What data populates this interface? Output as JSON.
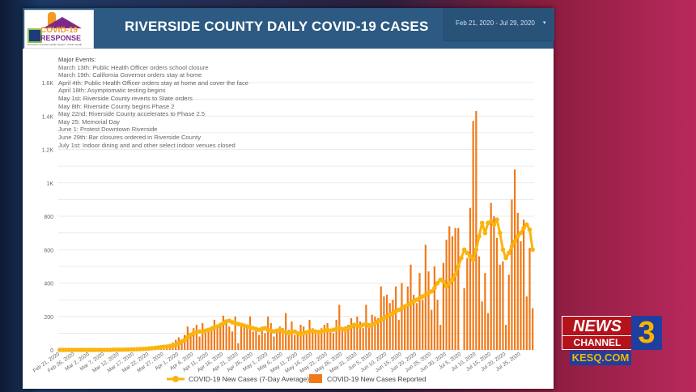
{
  "header": {
    "logo_line1": "COVID-19",
    "logo_line2": "RESPONSE",
    "logo_caption": "Riverside University Health System - Public Health",
    "title": "RIVERSIDE COUNTY DAILY COVID-19 CASES",
    "date_range": "Feb 21, 2020 - Jul 29, 2020",
    "date_caret": "▾"
  },
  "events": {
    "heading": "Major Events:",
    "items": [
      "March 13th: Public Health Officer orders school closure",
      "March 19th: California Governor orders stay at home",
      "April 4th: Public Health Officer orders stay at home and cover the face",
      "April 18th: Asymptomatic testing begins",
      "May 1st: Riverside County reverts to State orders",
      "May 8th: Riverside County begins Phase 2",
      "May 22nd: Riverside County accelerates to Phase 2.5",
      "May 25: Memorial Day",
      "June 1: Protest Downtown Riverside",
      "June 29th: Bar closures ordered in Riverside County",
      "July 1st: Indoor dining and and other select indoor venues closed"
    ]
  },
  "broadcaster": {
    "news": "NEWS",
    "channel": "CHANNEL",
    "number": "3",
    "site": "KESQ.COM"
  },
  "chart_data": {
    "type": "bar",
    "title": "RIVERSIDE COUNTY DAILY COVID-19 CASES",
    "xlabel": "",
    "ylabel": "",
    "ylim": [
      0,
      1700
    ],
    "yticks": [
      0,
      200,
      400,
      600,
      800,
      1000,
      1200,
      1400,
      1600
    ],
    "ytick_labels": [
      "0",
      "200",
      "400",
      "600",
      "800",
      "1K",
      "1.2K",
      "1.4K",
      "1.6K"
    ],
    "grid": true,
    "legend_position": "bottom",
    "colors": {
      "bars": "#f07a1a",
      "line": "#fbb40f"
    },
    "start_date": "Feb 21, 2020",
    "end_date": "Jul 29, 2020",
    "xtick_labels": [
      "Feb 21, 2020",
      "Feb 26, 2020",
      "Mar 2, 2020",
      "Mar 7, 2020",
      "Mar 12, 2020",
      "Mar 17, 2020",
      "Mar 22, 2020",
      "Mar 27, 2020",
      "Apr 1, 2020",
      "Apr 6, 2020",
      "Apr 11, 2020",
      "Apr 16, 2020",
      "Apr 21, 2020",
      "Apr 26, 2020",
      "May 1, 2020",
      "May 6, 2020",
      "May 11, 2020",
      "May 16, 2020",
      "May 21, 2020",
      "May 26, 2020",
      "May 31, 2020",
      "Jun 5, 2020",
      "Jun 10, 2020",
      "Jun 15, 2020",
      "Jun 20, 2020",
      "Jun 25, 2020",
      "Jun 30, 2020",
      "Jul 5, 2020",
      "Jul 10, 2020",
      "Jul 15, 2020",
      "Jul 20, 2020",
      "Jul 25, 2020"
    ],
    "series": [
      {
        "name": "COVID-19 New Cases (7-Day Average)",
        "type": "line",
        "values": [
          0,
          0,
          0,
          0,
          0,
          0,
          0,
          0,
          0,
          0,
          0,
          0,
          0,
          0,
          0,
          0,
          0,
          0,
          1,
          1,
          1,
          1,
          2,
          2,
          3,
          3,
          4,
          5,
          6,
          7,
          8,
          10,
          12,
          14,
          16,
          18,
          20,
          22,
          25,
          30,
          40,
          50,
          60,
          75,
          90,
          100,
          105,
          110,
          108,
          115,
          120,
          125,
          135,
          140,
          150,
          160,
          170,
          175,
          165,
          160,
          155,
          150,
          145,
          140,
          135,
          130,
          125,
          120,
          125,
          130,
          120,
          115,
          110,
          115,
          120,
          110,
          105,
          100,
          105,
          110,
          100,
          95,
          100,
          105,
          110,
          115,
          110,
          105,
          110,
          115,
          120,
          115,
          120,
          125,
          130,
          125,
          120,
          130,
          140,
          150,
          145,
          140,
          150,
          155,
          145,
          150,
          160,
          170,
          180,
          190,
          200,
          210,
          220,
          230,
          240,
          250,
          260,
          270,
          280,
          290,
          300,
          310,
          320,
          330,
          340,
          350,
          370,
          400,
          420,
          410,
          380,
          400,
          420,
          450,
          500,
          550,
          600,
          580,
          560,
          540,
          600,
          680,
          760,
          700,
          760,
          770,
          750,
          780,
          700,
          600,
          550,
          580,
          620,
          650,
          680,
          700,
          730,
          750,
          720,
          600
        ]
      },
      {
        "name": "COVID-19 New Cases Reported",
        "type": "bar",
        "values": [
          1,
          0,
          2,
          0,
          1,
          0,
          0,
          1,
          0,
          2,
          0,
          1,
          0,
          1,
          0,
          2,
          1,
          0,
          2,
          3,
          2,
          4,
          5,
          8,
          6,
          10,
          12,
          9,
          15,
          14,
          18,
          20,
          22,
          25,
          20,
          30,
          28,
          35,
          45,
          60,
          75,
          55,
          90,
          140,
          100,
          130,
          150,
          80,
          160,
          110,
          120,
          140,
          180,
          130,
          150,
          205,
          170,
          140,
          110,
          200,
          40,
          160,
          150,
          130,
          200,
          110,
          120,
          90,
          140,
          100,
          200,
          160,
          80,
          110,
          140,
          130,
          220,
          120,
          170,
          90,
          110,
          150,
          140,
          100,
          180,
          130,
          110,
          120,
          130,
          150,
          160,
          120,
          100,
          180,
          270,
          130,
          140,
          150,
          190,
          160,
          200,
          170,
          130,
          270,
          160,
          210,
          200,
          190,
          380,
          320,
          330,
          280,
          300,
          380,
          180,
          400,
          260,
          380,
          510,
          330,
          280,
          460,
          300,
          630,
          470,
          240,
          500,
          300,
          150,
          520,
          660,
          740,
          680,
          730,
          730,
          0,
          370,
          550,
          850,
          1370,
          1430,
          560,
          290,
          460,
          220,
          880,
          800,
          670,
          510,
          530,
          150,
          450,
          900,
          1080,
          820,
          650,
          780,
          320,
          610,
          250
        ]
      }
    ]
  },
  "legend": {
    "line_label": "COVID-19 New Cases (7-Day Average)",
    "bar_label": "COVID-19 New Cases Reported"
  }
}
